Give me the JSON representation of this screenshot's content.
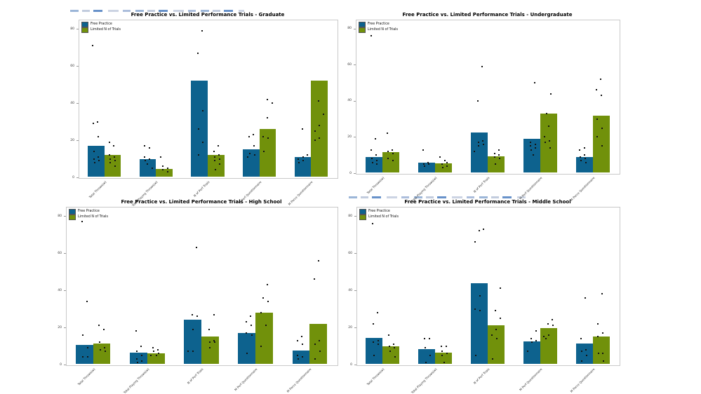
{
  "colors": {
    "free_practice_blue": "#0d628e",
    "limited_trials_green": "#71910b",
    "point_black": "#141414",
    "axis_border_gray": "#c9c9c9"
  },
  "legend_items": [
    {
      "label": "Free Practice",
      "color": "#0d628e"
    },
    {
      "label": "Limited N of Trials",
      "color": "#71910b"
    }
  ],
  "x_categories": [
    "Total Throws(w)",
    "Total Playing Throws(w)",
    "N of Perf Trials",
    "M Perf Questionnaire",
    "M Perce Questionnaire"
  ],
  "y_ticks": [
    0,
    20,
    40,
    60,
    80
  ],
  "artifacts": {
    "top_left_strip": "tiny-illegible-code-line",
    "bottom_right_strip": "tiny-illegible-code-line"
  },
  "chart_data": [
    {
      "type": "bar",
      "title": "Free Practice vs. Limited Performance Trials - Graduate",
      "categories": [
        "Total Throws(w)",
        "Total Playing Throws(w)",
        "N of Perf Trials",
        "M Perf Questionnaire",
        "M Perce Questionnaire"
      ],
      "ylim": [
        0,
        85
      ],
      "yticks": [
        0,
        20,
        40,
        60,
        80
      ],
      "legend_position": "upper left",
      "grid": false,
      "series": [
        {
          "name": "Free Practice",
          "color": "#0d628e",
          "values": [
            17,
            10,
            52,
            15,
            11
          ],
          "points": [
            [
              71,
              30,
              29,
              22,
              14,
              11,
              10,
              9,
              8
            ],
            [
              17,
              16,
              11,
              10,
              9,
              7,
              5
            ],
            [
              79,
              67,
              36,
              26,
              19,
              12
            ],
            [
              23,
              22,
              17,
              13,
              12,
              11
            ],
            [
              26,
              12,
              11,
              10,
              9,
              8
            ]
          ]
        },
        {
          "name": "Limited N of Trials",
          "color": "#71910b",
          "values": [
            12,
            4.5,
            12,
            26,
            52
          ],
          "points": [
            [
              19,
              17,
              12,
              11,
              10,
              9,
              8,
              6
            ],
            [
              11,
              6,
              5,
              4,
              3
            ],
            [
              17,
              14,
              12,
              11,
              10,
              9,
              7,
              4
            ],
            [
              42,
              40,
              32,
              22,
              21,
              14
            ],
            [
              41,
              34,
              28,
              25,
              21,
              20
            ]
          ]
        }
      ]
    },
    {
      "type": "bar",
      "title": "Free Practice vs. Limited Performance Trials - Undergraduate",
      "categories": [
        "Total Throws(w)",
        "Total Playing Throws(w)",
        "N of Perf Trials",
        "M Perf Questionnaire",
        "M Perce Questionnaire"
      ],
      "ylim": [
        0,
        85
      ],
      "yticks": [
        0,
        20,
        40,
        60,
        80
      ],
      "legend_position": "upper left",
      "grid": false,
      "series": [
        {
          "name": "Free Practice",
          "color": "#0d628e",
          "values": [
            9,
            6,
            22.5,
            19,
            9
          ],
          "points": [
            [
              76,
              19,
              13,
              10,
              8,
              7,
              6,
              5
            ],
            [
              13,
              6,
              5,
              5,
              4
            ],
            [
              59,
              40,
              18,
              17,
              16,
              15,
              12
            ],
            [
              50,
              17,
              16,
              15,
              14,
              13,
              10
            ],
            [
              14,
              13,
              10,
              9,
              8,
              7,
              6
            ]
          ]
        },
        {
          "name": "Limited N of Trials",
          "color": "#71910b",
          "values": [
            11.5,
            5.5,
            9.5,
            33,
            32
          ],
          "points": [
            [
              22,
              13,
              12,
              11,
              8,
              7
            ],
            [
              9,
              7,
              6,
              5,
              4,
              3
            ],
            [
              13,
              11,
              10,
              9,
              8,
              5
            ],
            [
              44,
              33,
              26,
              20,
              18,
              17,
              14
            ],
            [
              52,
              46,
              43,
              30,
              25,
              20,
              15
            ]
          ]
        }
      ]
    },
    {
      "type": "bar",
      "title": "Free Practice vs. Limited Performance Trials - High School",
      "categories": [
        "Total Throws(w)",
        "Total Playing Throws(w)",
        "N of Perf Trials",
        "M Perf Questionnaire",
        "M Perce Questionnaire"
      ],
      "ylim": [
        0,
        85
      ],
      "yticks": [
        0,
        20,
        40,
        60,
        80
      ],
      "legend_position": "upper left",
      "grid": false,
      "series": [
        {
          "name": "Free Practice",
          "color": "#0d628e",
          "values": [
            10.5,
            6.5,
            24,
            17,
            7.5
          ],
          "points": [
            [
              77,
              34,
              16,
              9,
              4,
              4
            ],
            [
              18,
              10,
              7,
              5,
              3,
              2,
              1
            ],
            [
              63,
              27,
              26,
              19,
              7,
              7
            ],
            [
              26,
              23,
              21,
              17,
              16,
              6
            ],
            [
              15,
              13,
              11,
              5,
              4,
              3
            ]
          ]
        },
        {
          "name": "Limited N of Trials",
          "color": "#71910b",
          "values": [
            11.5,
            6,
            15,
            28,
            22
          ],
          "points": [
            [
              21,
              19,
              12,
              9,
              8,
              7
            ],
            [
              9,
              8,
              7,
              6,
              5,
              5
            ],
            [
              27,
              19,
              13,
              12,
              12,
              9
            ],
            [
              43,
              36,
              34,
              28,
              21,
              10
            ],
            [
              56,
              46,
              13,
              11,
              7,
              3
            ]
          ]
        }
      ]
    },
    {
      "type": "bar",
      "title": "Free Practice vs. Limited Performance Trials - Middle School",
      "categories": [
        "Total Throws(w)",
        "Total Playing Throws(w)",
        "N of Perf Trials",
        "M Perf Questionnaire",
        "M Perce Questionnaire"
      ],
      "ylim": [
        0,
        85
      ],
      "yticks": [
        0,
        20,
        40,
        60,
        80
      ],
      "legend_position": "upper left",
      "grid": false,
      "series": [
        {
          "name": "Free Practice",
          "color": "#0d628e",
          "values": [
            14.5,
            8.5,
            44,
            12.5,
            11.5
          ],
          "points": [
            [
              76,
              28,
              22,
              13,
              12,
              11,
              5
            ],
            [
              14,
              14,
              9,
              5,
              1
            ],
            [
              73,
              72,
              66,
              37,
              30,
              29,
              5
            ],
            [
              18,
              14,
              13,
              12,
              7
            ],
            [
              36,
              14,
              8,
              7,
              5,
              2
            ]
          ]
        },
        {
          "name": "Limited N of Trials",
          "color": "#71910b",
          "values": [
            10,
            6.5,
            21,
            19.5,
            15
          ],
          "points": [
            [
              16,
              11,
              10,
              9,
              7,
              4
            ],
            [
              10,
              10,
              7,
              6,
              5,
              1
            ],
            [
              41,
              29,
              25,
              19,
              16,
              14,
              3
            ],
            [
              24,
              22,
              21,
              16,
              15,
              14
            ],
            [
              38,
              22,
              17,
              15,
              6,
              6,
              2
            ]
          ]
        }
      ]
    }
  ]
}
